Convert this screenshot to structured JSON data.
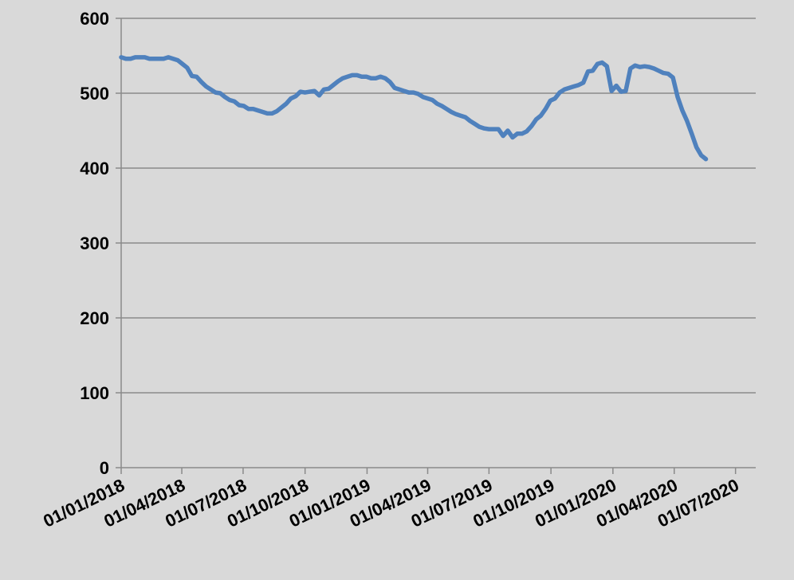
{
  "chart_data": {
    "type": "line",
    "title": "",
    "xlabel": "",
    "ylabel": "",
    "ylim": [
      0,
      600
    ],
    "xlim": [
      "2018-01-01",
      "2020-07-31"
    ],
    "grid": true,
    "legend": "none",
    "colors": {
      "background": "#d9d9d9",
      "line": "#4f81bd",
      "grid": "#8a8a8a"
    },
    "y_ticks": [
      0,
      100,
      200,
      300,
      400,
      500,
      600
    ],
    "y_tick_labels": [
      "0",
      "100",
      "200",
      "300",
      "400",
      "500",
      "600"
    ],
    "x_ticks": [
      "2018-01-01",
      "2018-04-01",
      "2018-07-01",
      "2018-10-01",
      "2019-01-01",
      "2019-04-01",
      "2019-07-01",
      "2019-10-01",
      "2020-01-01",
      "2020-04-01",
      "2020-07-01"
    ],
    "x_tick_labels": [
      "01/01/2018",
      "01/04/2018",
      "01/07/2018",
      "01/10/2018",
      "01/01/2019",
      "01/04/2019",
      "01/07/2019",
      "01/10/2019",
      "01/01/2020",
      "01/04/2020",
      "01/07/2020"
    ],
    "series": [
      {
        "x": [
          "2018-01-01",
          "2018-01-08",
          "2018-01-15",
          "2018-01-22",
          "2018-01-29",
          "2018-02-05",
          "2018-02-12",
          "2018-02-19",
          "2018-02-26",
          "2018-03-05",
          "2018-03-12",
          "2018-03-19",
          "2018-03-26",
          "2018-04-02",
          "2018-04-09",
          "2018-04-16",
          "2018-04-23",
          "2018-04-30",
          "2018-05-07",
          "2018-05-14",
          "2018-05-21",
          "2018-05-28",
          "2018-06-04",
          "2018-06-11",
          "2018-06-18",
          "2018-06-25",
          "2018-07-02",
          "2018-07-09",
          "2018-07-16",
          "2018-07-23",
          "2018-07-30",
          "2018-08-06",
          "2018-08-13",
          "2018-08-20",
          "2018-08-27",
          "2018-09-03",
          "2018-09-10",
          "2018-09-17",
          "2018-09-24",
          "2018-10-01",
          "2018-10-08",
          "2018-10-15",
          "2018-10-22",
          "2018-10-29",
          "2018-11-05",
          "2018-11-12",
          "2018-11-19",
          "2018-11-26",
          "2018-12-03",
          "2018-12-10",
          "2018-12-17",
          "2018-12-24",
          "2018-12-31",
          "2019-01-07",
          "2019-01-14",
          "2019-01-21",
          "2019-01-28",
          "2019-02-04",
          "2019-02-11",
          "2019-02-18",
          "2019-02-25",
          "2019-03-04",
          "2019-03-11",
          "2019-03-18",
          "2019-03-25",
          "2019-04-01",
          "2019-04-08",
          "2019-04-15",
          "2019-04-22",
          "2019-04-29",
          "2019-05-06",
          "2019-05-13",
          "2019-05-20",
          "2019-05-27",
          "2019-06-03",
          "2019-06-10",
          "2019-06-17",
          "2019-06-24",
          "2019-07-01",
          "2019-07-08",
          "2019-07-15",
          "2019-07-22",
          "2019-07-29",
          "2019-08-05",
          "2019-08-12",
          "2019-08-19",
          "2019-08-26",
          "2019-09-02",
          "2019-09-09",
          "2019-09-16",
          "2019-09-23",
          "2019-09-30",
          "2019-10-07",
          "2019-10-14",
          "2019-10-21",
          "2019-10-28",
          "2019-11-04",
          "2019-11-11",
          "2019-11-18",
          "2019-11-25",
          "2019-12-02",
          "2019-12-09",
          "2019-12-16",
          "2019-12-23",
          "2019-12-30",
          "2020-01-06",
          "2020-01-13",
          "2020-01-20",
          "2020-01-27",
          "2020-02-03",
          "2020-02-10",
          "2020-02-17",
          "2020-02-24",
          "2020-03-02",
          "2020-03-09",
          "2020-03-16",
          "2020-03-23",
          "2020-03-30",
          "2020-04-06",
          "2020-04-13",
          "2020-04-20",
          "2020-04-27",
          "2020-05-04",
          "2020-05-11",
          "2020-05-18"
        ],
        "values": [
          548,
          546,
          546,
          548,
          548,
          548,
          546,
          546,
          546,
          546,
          548,
          546,
          544,
          539,
          534,
          523,
          522,
          515,
          509,
          505,
          501,
          500,
          495,
          491,
          489,
          484,
          483,
          479,
          479,
          477,
          475,
          473,
          473,
          476,
          481,
          486,
          493,
          496,
          502,
          501,
          502,
          503,
          497,
          505,
          506,
          511,
          516,
          520,
          522,
          524,
          524,
          522,
          522,
          520,
          520,
          522,
          520,
          515,
          507,
          505,
          503,
          501,
          501,
          499,
          495,
          493,
          491,
          486,
          483,
          479,
          475,
          472,
          470,
          468,
          463,
          459,
          455,
          453,
          452,
          452,
          452,
          443,
          450,
          441,
          446,
          446,
          449,
          456,
          465,
          470,
          479,
          490,
          493,
          501,
          505,
          507,
          509,
          511,
          514,
          529,
          530,
          539,
          541,
          536,
          503,
          510,
          502,
          503,
          533,
          537,
          535,
          536,
          535,
          533,
          530,
          527,
          526,
          521,
          495,
          477,
          463,
          446,
          428,
          417,
          412
        ]
      }
    ]
  }
}
